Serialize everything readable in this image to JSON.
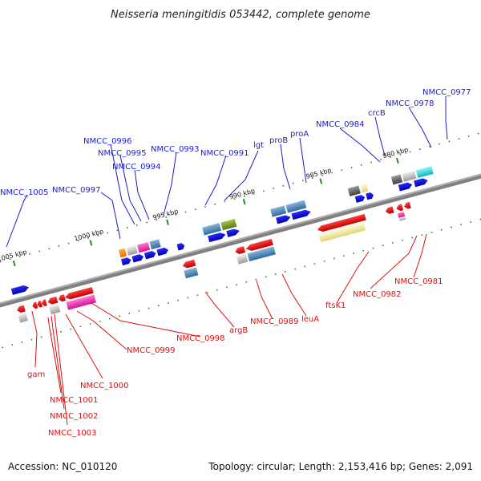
{
  "title": "Neisseria meningitidis 053442, complete genome",
  "accession": "Accession: NC_010120",
  "summary": "Topology: circular; Length: 2,153,416 bp; Genes: 2,091",
  "colors": {
    "forward_label": "#1c1ccc",
    "reverse_label": "#dd1111",
    "backbone": "#808080",
    "dots": "#2a8a2a"
  },
  "ticks": [
    {
      "label": "1005 kbp"
    },
    {
      "label": "1000 kbp"
    },
    {
      "label": "995 kbp"
    },
    {
      "label": "990 kbp"
    },
    {
      "label": "985 kbp"
    },
    {
      "label": "980 kbp"
    }
  ],
  "forward_genes": [
    {
      "label": "NMCC_1005"
    },
    {
      "label": "NMCC_0997"
    },
    {
      "label": "NMCC_0996"
    },
    {
      "label": "NMCC_0995"
    },
    {
      "label": "NMCC_0994"
    },
    {
      "label": "NMCC_0993"
    },
    {
      "label": "NMCC_0991"
    },
    {
      "label": "lgt"
    },
    {
      "label": "proB"
    },
    {
      "label": "proA"
    },
    {
      "label": "NMCC_0984"
    },
    {
      "label": "crcB"
    },
    {
      "label": "NMCC_0978"
    },
    {
      "label": "NMCC_0977"
    }
  ],
  "reverse_genes": [
    {
      "label": "gam"
    },
    {
      "label": "NMCC_1001"
    },
    {
      "label": "NMCC_1002"
    },
    {
      "label": "NMCC_1003"
    },
    {
      "label": "NMCC_1000"
    },
    {
      "label": "NMCC_0999"
    },
    {
      "label": "NMCC_0998"
    },
    {
      "label": "argB"
    },
    {
      "label": "NMCC_0989"
    },
    {
      "label": "leuA"
    },
    {
      "label": "ftsK1"
    },
    {
      "label": "NMCC_0982"
    },
    {
      "label": "NMCC_0981"
    }
  ]
}
